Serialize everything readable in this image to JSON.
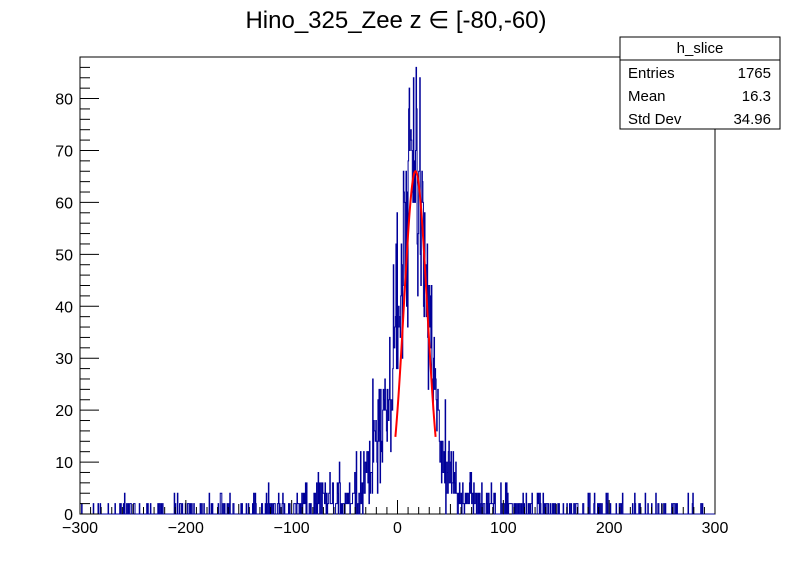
{
  "chart_data": {
    "type": "histogram",
    "title": "Hino_325_Zee z  ∈ [-80,-60)",
    "xlabel": "",
    "ylabel": "",
    "xlim": [
      -300,
      300
    ],
    "ylim": [
      0,
      88
    ],
    "x_ticks": [
      -300,
      -200,
      -100,
      0,
      100,
      200,
      300
    ],
    "x_tick_labels": [
      "−300",
      "−200",
      "−100",
      "0",
      "100",
      "200",
      "300"
    ],
    "y_ticks": [
      0,
      10,
      20,
      30,
      40,
      50,
      60,
      70,
      80
    ],
    "y_tick_labels": [
      "0",
      "10",
      "20",
      "30",
      "40",
      "50",
      "60",
      "70",
      "80"
    ],
    "grid": false,
    "legend": "none",
    "histogram_color": "#000099",
    "fit_color": "#ff0000",
    "stats_box": {
      "name": "h_slice",
      "rows": [
        {
          "label": "Entries",
          "value": "1765"
        },
        {
          "label": "Mean",
          "value": "16.3"
        },
        {
          "label": "Std Dev",
          "value": "34.96"
        }
      ]
    },
    "histogram_envelope": {
      "x": [
        -300,
        -280,
        -260,
        -240,
        -220,
        -200,
        -180,
        -160,
        -140,
        -120,
        -100,
        -90,
        -80,
        -70,
        -60,
        -50,
        -40,
        -35,
        -30,
        -25,
        -20,
        -15,
        -10,
        -5,
        0,
        5,
        10,
        12,
        15,
        18,
        20,
        22,
        25,
        28,
        30,
        35,
        40,
        45,
        50,
        60,
        70,
        80,
        100,
        120,
        140,
        160,
        180,
        200,
        220,
        240,
        260,
        280,
        300
      ],
      "y": [
        0,
        0.3,
        0.5,
        0.4,
        0.4,
        0.5,
        0.5,
        0.6,
        0.7,
        0.8,
        1,
        1.3,
        1.6,
        2,
        2.5,
        3,
        4,
        6,
        8,
        10,
        13,
        17,
        22,
        30,
        38,
        50,
        62,
        68,
        70,
        68,
        64,
        58,
        50,
        42,
        35,
        22,
        14,
        9,
        6,
        4,
        3,
        2,
        1.4,
        1,
        0.8,
        0.7,
        0.6,
        0.5,
        0.4,
        0.4,
        0.3,
        0.3,
        0
      ]
    },
    "fit": {
      "function": "gaussian",
      "amplitude": 66,
      "mean": 17,
      "sigma": 11,
      "x_range": [
        -2,
        36
      ]
    }
  }
}
